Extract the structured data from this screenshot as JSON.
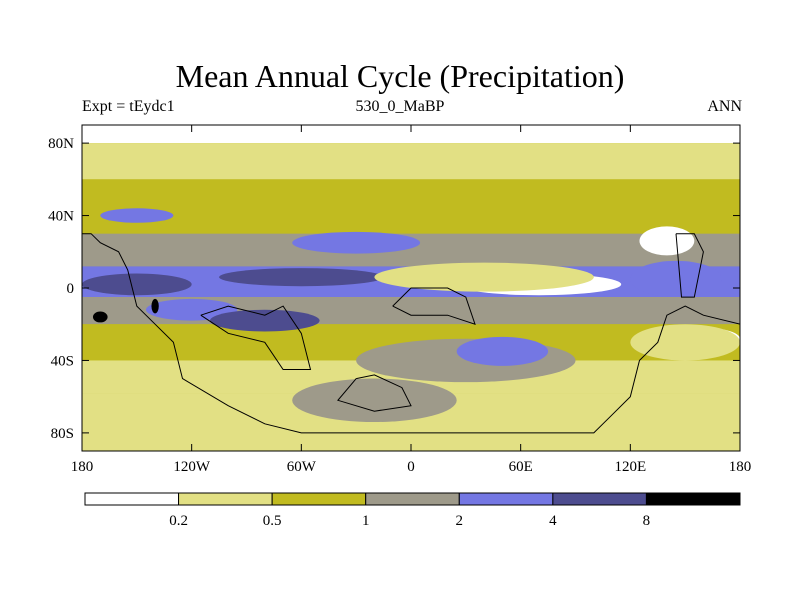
{
  "chart_data": {
    "type": "heatmap",
    "title": "Mean Annual Cycle (Precipitation)",
    "left_label": "Expt = tEydc1",
    "center_label": "530_0_MaBP",
    "right_label": "ANN",
    "x_range": [
      -180,
      180
    ],
    "y_range": [
      -90,
      90
    ],
    "xticks": [
      {
        "value": -180,
        "label": "180"
      },
      {
        "value": -120,
        "label": "120W"
      },
      {
        "value": -60,
        "label": "60W"
      },
      {
        "value": 0,
        "label": "0"
      },
      {
        "value": 60,
        "label": "60E"
      },
      {
        "value": 120,
        "label": "120E"
      },
      {
        "value": 180,
        "label": "180"
      }
    ],
    "yticks": [
      {
        "value": 80,
        "label": "80N"
      },
      {
        "value": 40,
        "label": "40N"
      },
      {
        "value": 0,
        "label": "0"
      },
      {
        "value": -40,
        "label": "40S"
      },
      {
        "value": -80,
        "label": "80S"
      }
    ],
    "levels": [
      "0.2",
      "0.5",
      "1",
      "2",
      "4",
      "8"
    ],
    "colors": [
      "#ffffff",
      "#e2e084",
      "#c1bb20",
      "#9e9a8a",
      "#7477e3",
      "#4d4c8f",
      "#000000"
    ],
    "background_band": "#c1bb20",
    "zonal_bands": [
      {
        "lat": [
          80,
          90
        ],
        "level": 0
      },
      {
        "lat": [
          60,
          80
        ],
        "level": 1
      },
      {
        "lat": [
          30,
          60
        ],
        "level": 2
      },
      {
        "lat": [
          12,
          30
        ],
        "level": 3
      },
      {
        "lat": [
          -5,
          12
        ],
        "level": 4
      },
      {
        "lat": [
          -20,
          -5
        ],
        "level": 3
      },
      {
        "lat": [
          -40,
          -20
        ],
        "level": 2
      },
      {
        "lat": [
          -58,
          -40
        ],
        "level": 1
      },
      {
        "lat": [
          -90,
          -58
        ],
        "level": 1
      }
    ],
    "features": [
      {
        "lon": -150,
        "lat": 2,
        "rx": 30,
        "ry": 6,
        "level": 5
      },
      {
        "lon": -60,
        "lat": 6,
        "rx": 45,
        "ry": 5,
        "level": 5
      },
      {
        "lon": -120,
        "lat": -12,
        "rx": 25,
        "ry": 6,
        "level": 4
      },
      {
        "lon": -80,
        "lat": -18,
        "rx": 30,
        "ry": 6,
        "level": 5
      },
      {
        "lon": 70,
        "lat": 2,
        "rx": 45,
        "ry": 6,
        "level": 0
      },
      {
        "lon": 40,
        "lat": 6,
        "rx": 60,
        "ry": 8,
        "level": 1
      },
      {
        "lon": 145,
        "lat": 5,
        "rx": 25,
        "ry": 10,
        "level": 4
      },
      {
        "lon": 160,
        "lat": -28,
        "rx": 20,
        "ry": 6,
        "level": 0
      },
      {
        "lon": 150,
        "lat": -30,
        "rx": 30,
        "ry": 10,
        "level": 1
      },
      {
        "lon": 30,
        "lat": -40,
        "rx": 60,
        "ry": 12,
        "level": 3
      },
      {
        "lon": 50,
        "lat": -35,
        "rx": 25,
        "ry": 8,
        "level": 4
      },
      {
        "lon": -20,
        "lat": -62,
        "rx": 45,
        "ry": 12,
        "level": 3
      },
      {
        "lon": -30,
        "lat": 25,
        "rx": 35,
        "ry": 6,
        "level": 4
      },
      {
        "lon": -150,
        "lat": 40,
        "rx": 20,
        "ry": 4,
        "level": 4
      },
      {
        "lon": 140,
        "lat": 26,
        "rx": 15,
        "ry": 8,
        "level": 0
      },
      {
        "lon": -170,
        "lat": -16,
        "rx": 4,
        "ry": 3,
        "level": 6
      },
      {
        "lon": -140,
        "lat": -10,
        "rx": 2,
        "ry": 4,
        "level": 6
      }
    ],
    "land_outlines": [
      [
        [
          -180,
          30
        ],
        [
          -175,
          30
        ],
        [
          -170,
          25
        ],
        [
          -160,
          20
        ],
        [
          -155,
          10
        ],
        [
          -150,
          -10
        ],
        [
          -140,
          -20
        ],
        [
          -130,
          -30
        ],
        [
          -125,
          -50
        ],
        [
          -100,
          -65
        ],
        [
          -80,
          -75
        ],
        [
          -60,
          -80
        ],
        [
          0,
          -80
        ],
        [
          100,
          -80
        ],
        [
          110,
          -70
        ],
        [
          120,
          -60
        ],
        [
          125,
          -40
        ],
        [
          135,
          -30
        ],
        [
          140,
          -15
        ],
        [
          150,
          -10
        ],
        [
          160,
          -15
        ],
        [
          180,
          -20
        ]
      ],
      [
        [
          -115,
          -15
        ],
        [
          -100,
          -10
        ],
        [
          -80,
          -15
        ],
        [
          -70,
          -10
        ],
        [
          -60,
          -25
        ],
        [
          -55,
          -45
        ],
        [
          -70,
          -45
        ],
        [
          -80,
          -30
        ],
        [
          -100,
          -25
        ],
        [
          -115,
          -15
        ]
      ],
      [
        [
          -10,
          -10
        ],
        [
          0,
          0
        ],
        [
          20,
          0
        ],
        [
          30,
          -5
        ],
        [
          35,
          -20
        ],
        [
          20,
          -15
        ],
        [
          0,
          -15
        ],
        [
          -10,
          -10
        ]
      ],
      [
        [
          -30,
          -50
        ],
        [
          -20,
          -48
        ],
        [
          -5,
          -55
        ],
        [
          0,
          -65
        ],
        [
          -20,
          -68
        ],
        [
          -40,
          -62
        ],
        [
          -30,
          -50
        ]
      ],
      [
        [
          145,
          30
        ],
        [
          155,
          30
        ],
        [
          160,
          20
        ],
        [
          155,
          -5
        ],
        [
          148,
          -5
        ],
        [
          145,
          30
        ]
      ]
    ]
  }
}
